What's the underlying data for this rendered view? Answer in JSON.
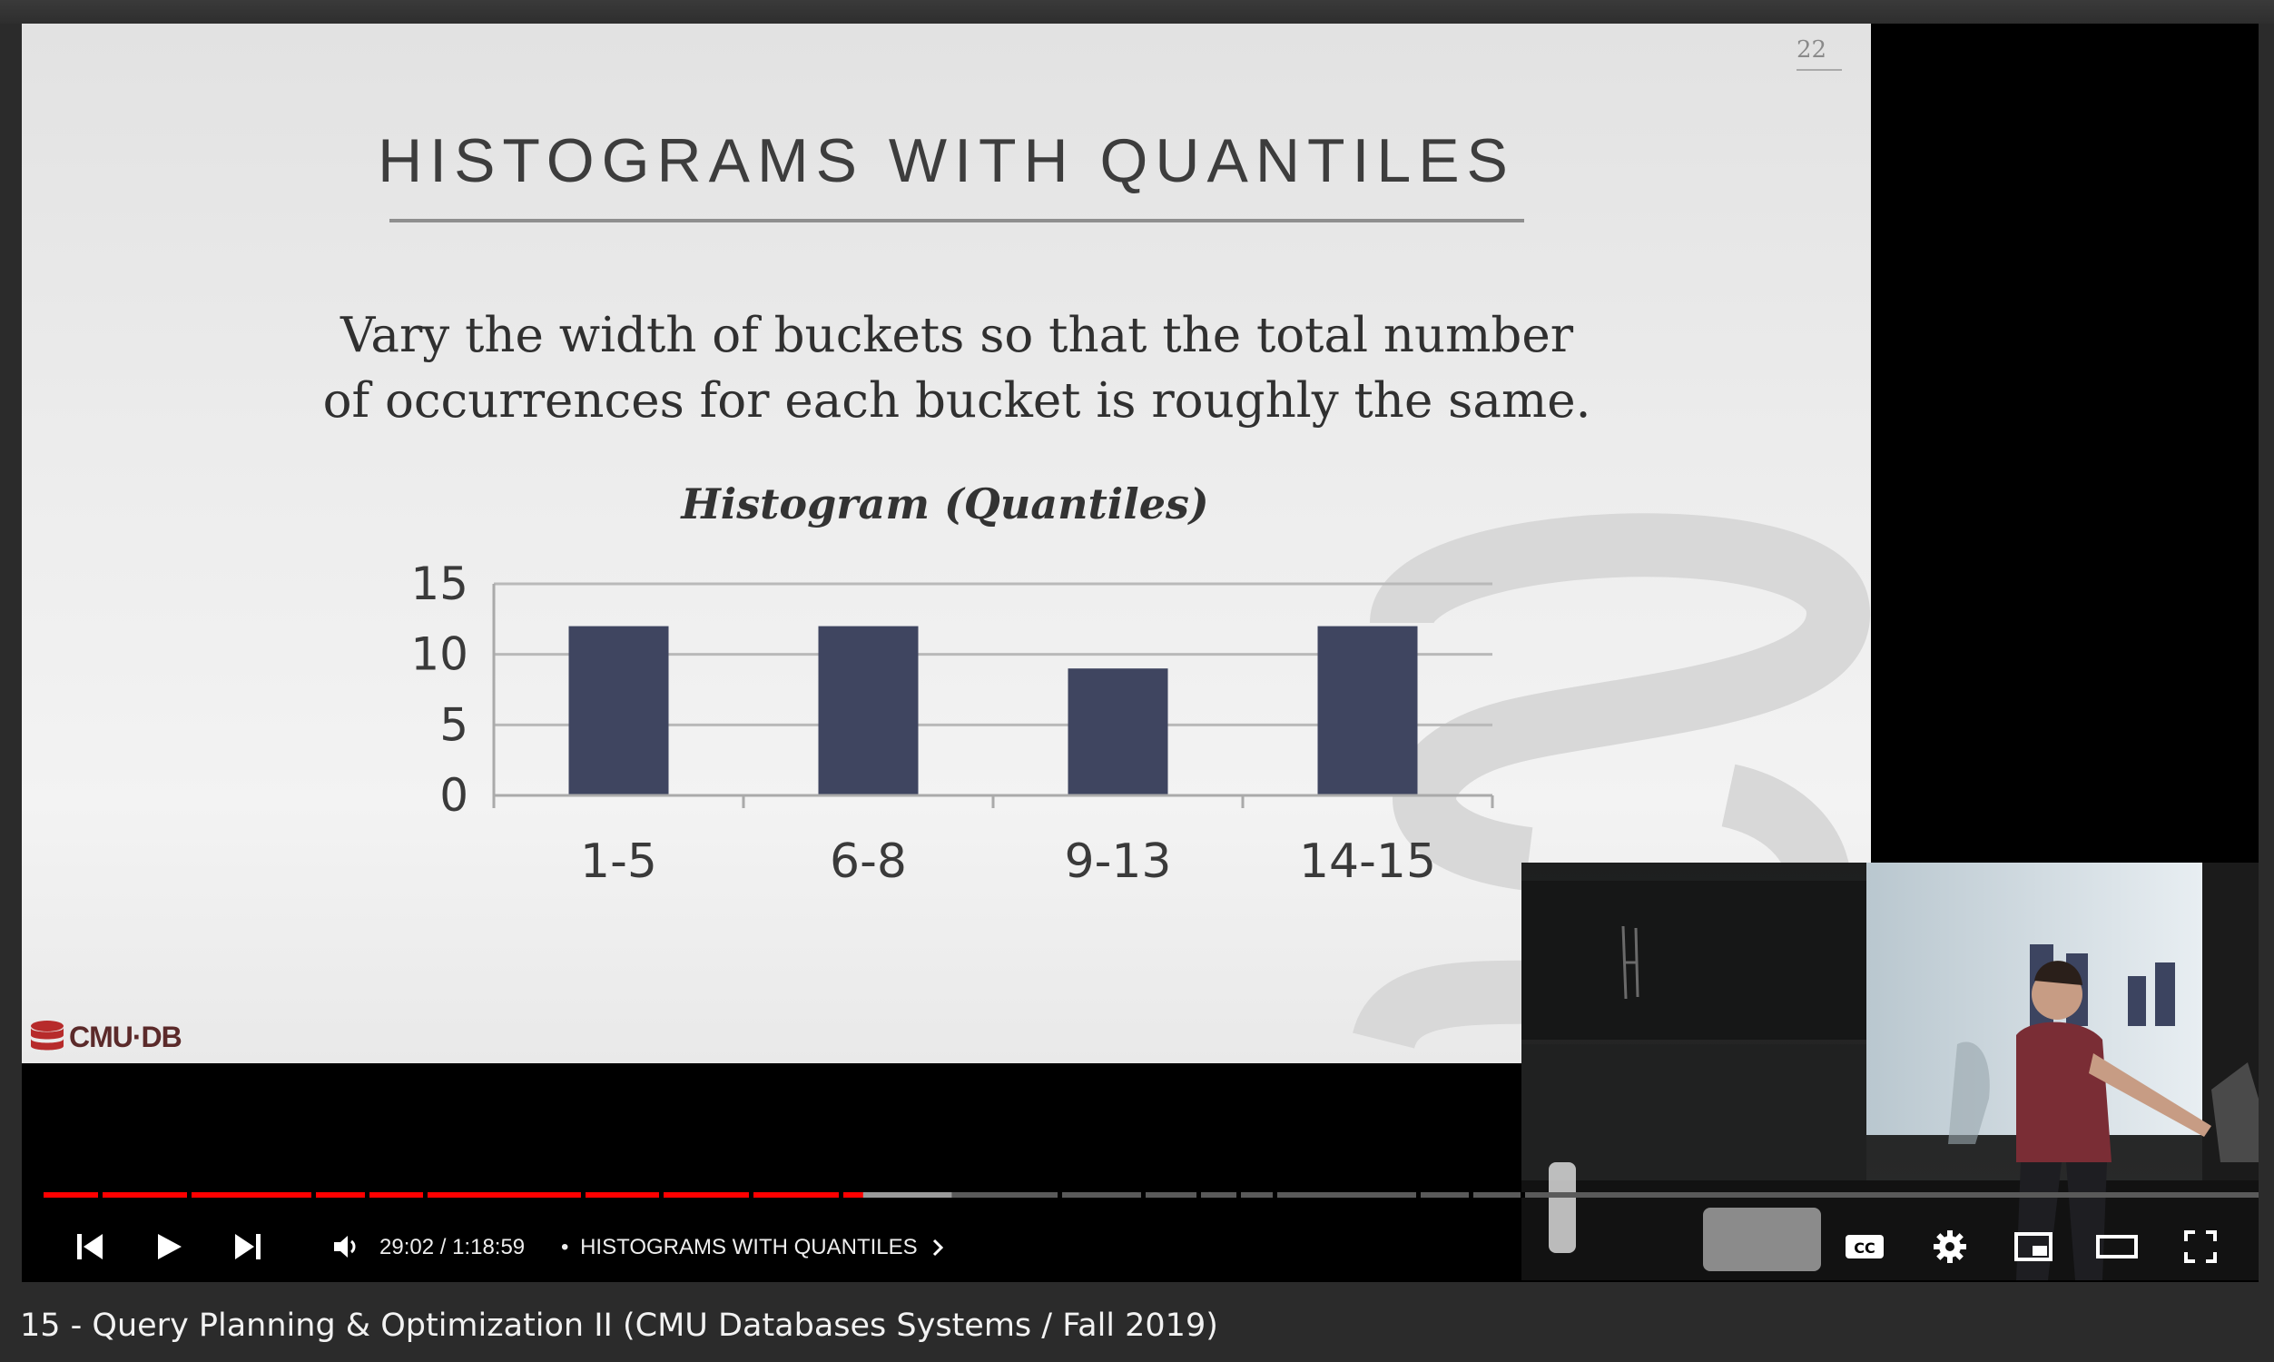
{
  "slide": {
    "number": "22",
    "title": "HISTOGRAMS WITH QUANTILES",
    "subtitle_line1": "Vary the width of buckets so that the total number",
    "subtitle_line2": "of occurrences for each bucket is roughly the same.",
    "logo_text": "CMU·DB"
  },
  "chart_data": {
    "type": "bar",
    "title": "Histogram (Quantiles)",
    "categories": [
      "1-5",
      "6-8",
      "9-13",
      "14-15"
    ],
    "values": [
      12,
      12,
      9,
      12
    ],
    "ylim": [
      0,
      15
    ],
    "yticks": [
      0,
      5,
      10,
      15
    ],
    "grid": true,
    "bar_color": "#3f4560"
  },
  "player": {
    "time_current": "29:02",
    "time_total": "1:18:59",
    "separator": "•",
    "chapter": "HISTOGRAMS WITH QUANTILES",
    "progress_played": 0.37,
    "progress_buffered": 0.41,
    "accent_color": "#ff0000"
  },
  "icons": {
    "previous": "skip-previous-icon",
    "play": "play-icon",
    "next": "skip-next-icon",
    "volume": "volume-icon",
    "chapter_arrow": "chevron-right-icon",
    "captions": "closed-captions-icon",
    "settings": "gear-icon",
    "miniplayer": "miniplayer-icon",
    "theater": "theater-mode-icon",
    "fullscreen": "fullscreen-icon"
  },
  "video": {
    "title": "15 - Query Planning & Optimization II (CMU Databases Systems / Fall 2019)"
  }
}
